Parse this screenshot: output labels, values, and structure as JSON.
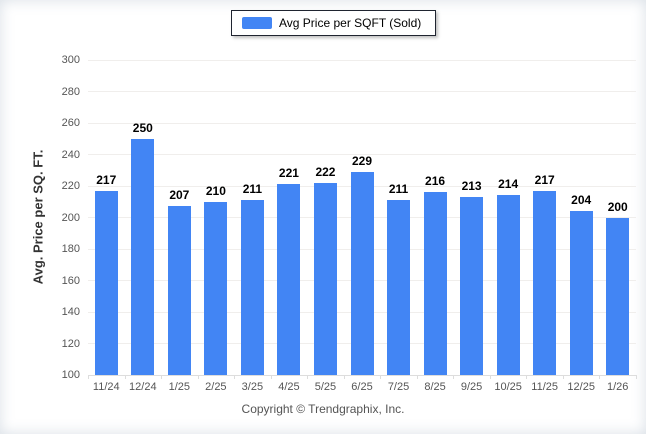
{
  "legend": {
    "label": "Avg Price per SQFT (Sold)",
    "swatch_color": "#4285f4"
  },
  "y_axis": {
    "title": "Avg. Price per SQ. FT."
  },
  "footer": {
    "copyright": "Copyright © Trendgraphix, Inc."
  },
  "chart_data": {
    "type": "bar",
    "title": "Avg Price per SQFT (Sold)",
    "categories": [
      "11/24",
      "12/24",
      "1/25",
      "2/25",
      "3/25",
      "4/25",
      "5/25",
      "6/25",
      "7/25",
      "8/25",
      "9/25",
      "10/25",
      "11/25",
      "12/25",
      "1/26"
    ],
    "values": [
      217,
      250,
      207,
      210,
      211,
      221,
      222,
      229,
      211,
      216,
      213,
      214,
      217,
      204,
      200
    ],
    "xlabel": "",
    "ylabel": "Avg. Price per SQ. FT.",
    "ylim": [
      100,
      300
    ],
    "ytick_step": 20,
    "bar_color": "#4285f4",
    "grid": true,
    "legend_position": "top-center",
    "data_labels": true
  }
}
